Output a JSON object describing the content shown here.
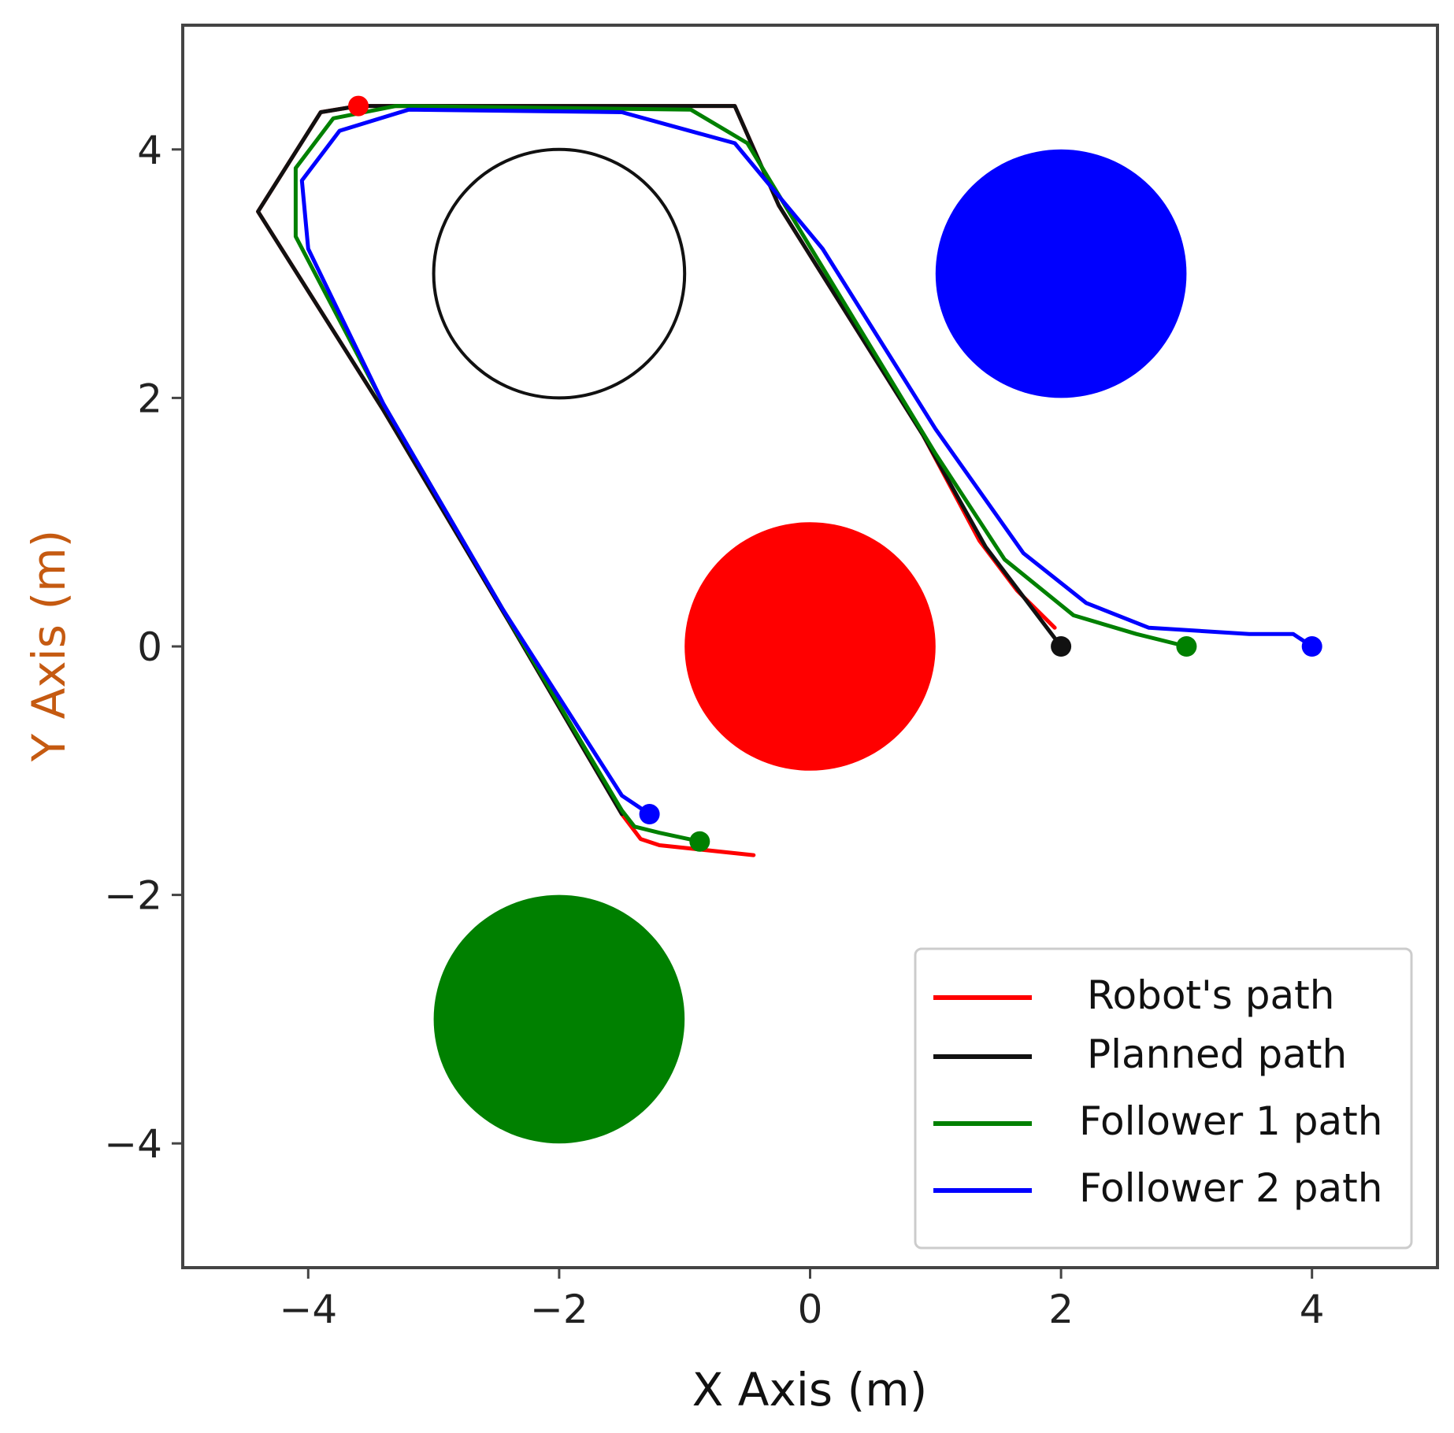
{
  "chart_data": {
    "type": "line",
    "xlabel": "X Axis (m)",
    "ylabel": "Y Axis (m)",
    "xlabel_color": "#111111",
    "ylabel_color": "#c55a11",
    "xlim": [
      -5,
      5
    ],
    "ylim": [
      -5,
      5
    ],
    "xticks": [
      -4,
      -2,
      0,
      2,
      4
    ],
    "yticks": [
      -4,
      -2,
      0,
      2,
      4
    ],
    "xtick_labels": [
      "−4",
      "−2",
      "0",
      "2",
      "4"
    ],
    "ytick_labels": [
      "−4",
      "−2",
      "0",
      "2",
      "4"
    ],
    "grid": false,
    "legend_position": "lower-right",
    "obstacles": [
      {
        "name": "hollow-obstacle",
        "cx": -2,
        "cy": 3,
        "r": 1,
        "fill": "none",
        "stroke": "#111111"
      },
      {
        "name": "blue-obstacle",
        "cx": 2,
        "cy": 3,
        "r": 1,
        "fill": "#0000ff",
        "stroke": "none"
      },
      {
        "name": "red-obstacle",
        "cx": 0,
        "cy": 0,
        "r": 1,
        "fill": "#ff0000",
        "stroke": "none"
      },
      {
        "name": "green-obstacle",
        "cx": -2,
        "cy": -3,
        "r": 1,
        "fill": "#008000",
        "stroke": "none"
      }
    ],
    "series": [
      {
        "name": "Robot's path",
        "color": "#ff0000",
        "points": [
          [
            -0.45,
            -1.68
          ],
          [
            -1.2,
            -1.6
          ],
          [
            -1.35,
            -1.55
          ],
          [
            -1.5,
            -1.35
          ],
          [
            -2.4,
            0.2
          ],
          [
            -3.4,
            1.9
          ],
          [
            -4.4,
            3.5
          ],
          [
            -3.9,
            4.3
          ],
          [
            -3.6,
            4.35
          ],
          [
            -0.6,
            4.35
          ],
          [
            -0.25,
            3.55
          ],
          [
            0.9,
            1.7
          ],
          [
            1.35,
            0.85
          ],
          [
            1.65,
            0.45
          ],
          [
            1.95,
            0.15
          ]
        ],
        "start": [
          -3.6,
          4.35
        ]
      },
      {
        "name": "Planned path",
        "color": "#111111",
        "points": [
          [
            -1.5,
            -1.35
          ],
          [
            -2.4,
            0.2
          ],
          [
            -3.4,
            1.9
          ],
          [
            -4.4,
            3.5
          ],
          [
            -3.9,
            4.3
          ],
          [
            -3.6,
            4.35
          ],
          [
            -0.6,
            4.35
          ],
          [
            -0.25,
            3.55
          ],
          [
            0.9,
            1.7
          ],
          [
            1.4,
            0.8
          ],
          [
            2.0,
            0.0
          ]
        ],
        "end": [
          2.0,
          0.0
        ]
      },
      {
        "name": "Follower 1 path",
        "color": "#008000",
        "points": [
          [
            -0.88,
            -1.57
          ],
          [
            -1.2,
            -1.5
          ],
          [
            -1.4,
            -1.45
          ],
          [
            -1.5,
            -1.32
          ],
          [
            -2.45,
            0.3
          ],
          [
            -3.4,
            1.95
          ],
          [
            -4.1,
            3.3
          ],
          [
            -4.1,
            3.85
          ],
          [
            -3.8,
            4.25
          ],
          [
            -3.3,
            4.35
          ],
          [
            -0.95,
            4.32
          ],
          [
            -0.5,
            4.05
          ],
          [
            0.1,
            3.05
          ],
          [
            1.0,
            1.55
          ],
          [
            1.55,
            0.7
          ],
          [
            2.1,
            0.25
          ],
          [
            2.6,
            0.1
          ],
          [
            3.0,
            0.0
          ]
        ],
        "start": [
          3.0,
          0.0
        ],
        "end": [
          -0.88,
          -1.57
        ]
      },
      {
        "name": "Follower 2 path",
        "color": "#0000ff",
        "points": [
          [
            -1.28,
            -1.35
          ],
          [
            -1.5,
            -1.2
          ],
          [
            -2.45,
            0.3
          ],
          [
            -3.4,
            1.95
          ],
          [
            -4.0,
            3.2
          ],
          [
            -4.05,
            3.75
          ],
          [
            -3.75,
            4.15
          ],
          [
            -3.2,
            4.32
          ],
          [
            -1.5,
            4.3
          ],
          [
            -0.6,
            4.05
          ],
          [
            0.1,
            3.2
          ],
          [
            1.0,
            1.75
          ],
          [
            1.7,
            0.75
          ],
          [
            2.2,
            0.35
          ],
          [
            2.7,
            0.15
          ],
          [
            3.5,
            0.1
          ],
          [
            3.85,
            0.1
          ],
          [
            4.0,
            0.0
          ]
        ],
        "start": [
          4.0,
          0.0
        ],
        "end": [
          -1.28,
          -1.35
        ]
      }
    ]
  }
}
